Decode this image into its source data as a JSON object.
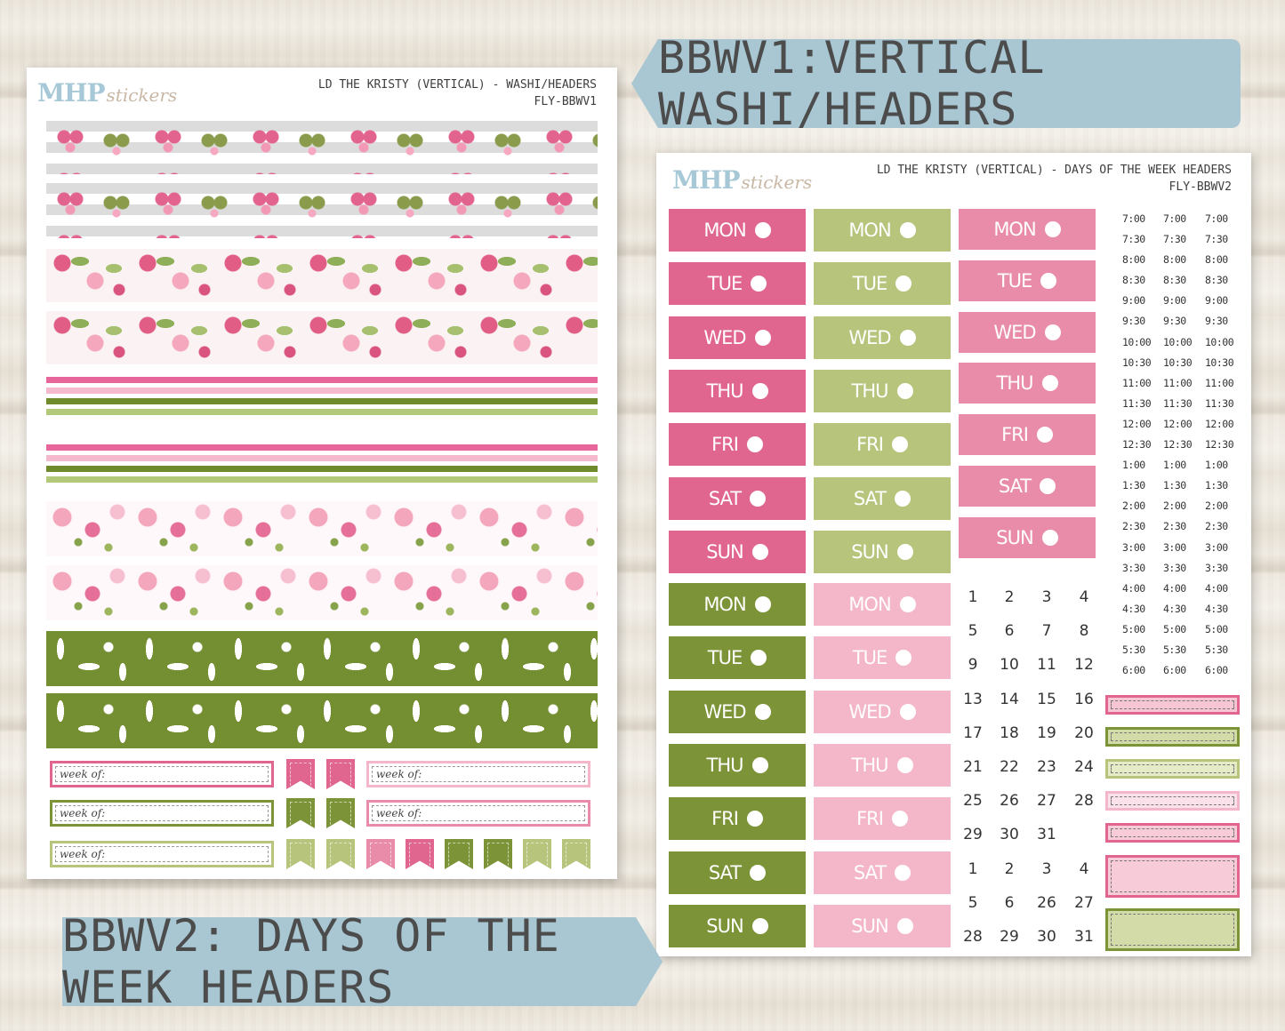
{
  "banners": {
    "top": "BBWV1:VERTICAL WASHI/HEADERS",
    "bottom": "BBWV2: DAYS OF THE WEEK HEADERS"
  },
  "logo": {
    "main": "MHP",
    "script": "stickers"
  },
  "sheet_left": {
    "title_line1": "LD THE KRISTY (VERTICAL) - WASHI/HEADERS",
    "title_line2": "FLY-BBWV1",
    "week_of_label": "week of:"
  },
  "sheet_right": {
    "title_line1": "LD THE KRISTY (VERTICAL) - DAYS OF THE WEEK HEADERS",
    "title_line2": "FLY-BBWV2",
    "days": [
      "MON",
      "TUE",
      "WED",
      "THU",
      "FRI",
      "SAT",
      "SUN"
    ],
    "times": [
      "7:00",
      "7:30",
      "8:00",
      "8:30",
      "9:00",
      "9:30",
      "10:00",
      "10:30",
      "11:00",
      "11:30",
      "12:00",
      "12:30",
      "1:00",
      "1:30",
      "2:00",
      "2:30",
      "3:00",
      "3:30",
      "4:00",
      "4:30",
      "5:00",
      "5:30",
      "6:00"
    ],
    "date_grid": [
      [
        "1",
        "2",
        "3",
        "4"
      ],
      [
        "5",
        "6",
        "7",
        "8"
      ],
      [
        "9",
        "10",
        "11",
        "12"
      ],
      [
        "13",
        "14",
        "15",
        "16"
      ],
      [
        "17",
        "18",
        "19",
        "20"
      ],
      [
        "21",
        "22",
        "23",
        "24"
      ],
      [
        "25",
        "26",
        "27",
        "28"
      ],
      [
        "29",
        "30",
        "31",
        ""
      ],
      [
        "1",
        "2",
        "3",
        "4"
      ],
      [
        "5",
        "6",
        "26",
        "27"
      ],
      [
        "28",
        "29",
        "30",
        "31"
      ]
    ]
  },
  "colors": {
    "pink": "#e0668f",
    "sage": "#b6c47c",
    "rose": "#e88ca9",
    "olive": "#7c9338",
    "blush": "#f4b6c9",
    "banner": "#a9c7d3"
  }
}
